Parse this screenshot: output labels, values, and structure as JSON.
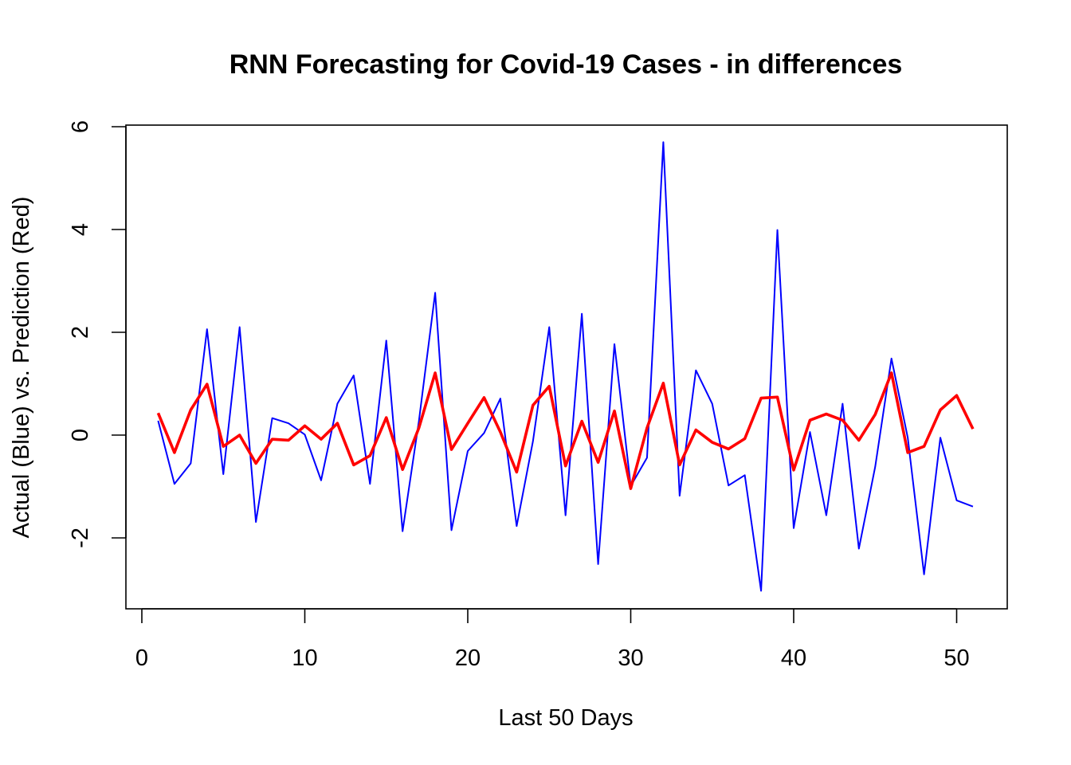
{
  "chart_data": {
    "type": "line",
    "title": "RNN Forecasting for Covid-19 Cases - in differences",
    "xlabel": "Last 50 Days",
    "ylabel": "Actual (Blue) vs. Prediction (Red)",
    "xlim": [
      0,
      52
    ],
    "ylim": [
      -3.2,
      6
    ],
    "x_ticks": [
      0,
      10,
      20,
      30,
      40,
      50
    ],
    "y_ticks": [
      -2,
      0,
      2,
      4,
      6
    ],
    "x_tick_labels": [
      "0",
      "10",
      "20",
      "30",
      "40",
      "50"
    ],
    "y_tick_labels": [
      "-2",
      "0",
      "2",
      "4",
      "6"
    ],
    "grid": false,
    "legend": "none",
    "x": [
      1,
      2,
      3,
      4,
      5,
      6,
      7,
      8,
      9,
      10,
      11,
      12,
      13,
      14,
      15,
      16,
      17,
      18,
      19,
      20,
      21,
      22,
      23,
      24,
      25,
      26,
      27,
      28,
      29,
      30,
      31,
      32,
      33,
      34,
      35,
      36,
      37,
      38,
      39,
      40,
      41,
      42,
      43,
      44,
      45,
      46,
      47,
      48,
      49,
      50,
      51
    ],
    "series": [
      {
        "color": "#0000ff",
        "values": [
          0.28,
          -0.95,
          -0.55,
          2.06,
          -0.76,
          2.1,
          -1.69,
          0.33,
          0.23,
          0.01,
          -0.88,
          0.61,
          1.16,
          -0.95,
          1.84,
          -1.87,
          0.27,
          2.77,
          -1.85,
          -0.31,
          0.04,
          0.71,
          -1.77,
          -0.12,
          2.1,
          -1.56,
          2.36,
          -2.51,
          1.77,
          -0.99,
          -0.44,
          5.7,
          -1.18,
          1.26,
          0.61,
          -0.98,
          -0.78,
          -3.03,
          3.99,
          -1.81,
          0.06,
          -1.56,
          0.61,
          -2.21,
          -0.62,
          1.49,
          -0.05,
          -2.71,
          -0.05,
          -1.27,
          -1.39
        ]
      },
      {
        "color": "#ff0000",
        "values": [
          0.43,
          -0.34,
          0.49,
          0.99,
          -0.22,
          0.0,
          -0.55,
          -0.08,
          -0.1,
          0.18,
          -0.08,
          0.23,
          -0.58,
          -0.4,
          0.34,
          -0.67,
          0.14,
          1.21,
          -0.28,
          0.23,
          0.73,
          0.06,
          -0.72,
          0.58,
          0.95,
          -0.6,
          0.27,
          -0.53,
          0.47,
          -1.04,
          0.14,
          1.01,
          -0.58,
          0.1,
          -0.14,
          -0.27,
          -0.07,
          0.72,
          0.74,
          -0.68,
          0.29,
          0.41,
          0.29,
          -0.1,
          0.4,
          1.21,
          -0.34,
          -0.22,
          0.49,
          0.77,
          0.12
        ]
      }
    ]
  }
}
